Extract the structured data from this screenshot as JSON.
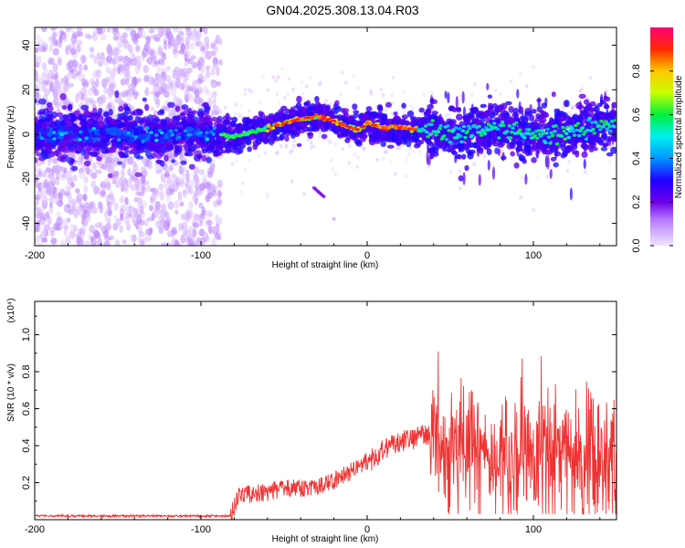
{
  "title": "GN04.2025.308.13.04.R03",
  "chart_data": [
    {
      "type": "heatmap",
      "name": "spectrogram",
      "xlabel": "Height of straight line (km)",
      "ylabel": "Frequency (Hz)",
      "xlim": [
        -200,
        150
      ],
      "ylim": [
        -50,
        48
      ],
      "xticks": [
        -200,
        -100,
        0,
        100
      ],
      "yticks": [
        -40,
        -20,
        0,
        20,
        40
      ],
      "colorbar": {
        "label": "Normalized spectral amplitude",
        "range": [
          0.0,
          1.0
        ],
        "ticks": [
          0.0,
          0.2,
          0.4,
          0.6,
          0.8
        ],
        "tick_labels": [
          "0.0",
          "0.2",
          "0.4",
          "0.6",
          "0.8"
        ],
        "colors": [
          "#f0e6ff",
          "#7a00ff",
          "#0000ff",
          "#00ffff",
          "#00ff00",
          "#ffff00",
          "#ff8000",
          "#ff0000",
          "#ff0080"
        ]
      },
      "ridge": [
        [
          -90,
          0
        ],
        [
          -80,
          -1
        ],
        [
          -70,
          1
        ],
        [
          -60,
          3
        ],
        [
          -50,
          5
        ],
        [
          -40,
          7
        ],
        [
          -30,
          8
        ],
        [
          -20,
          6
        ],
        [
          -10,
          3
        ],
        [
          -5,
          2
        ],
        [
          0,
          5
        ],
        [
          10,
          3
        ],
        [
          20,
          3
        ],
        [
          30,
          2
        ],
        [
          40,
          2
        ],
        [
          50,
          0
        ],
        [
          60,
          1
        ],
        [
          70,
          2
        ],
        [
          80,
          3
        ],
        [
          90,
          1
        ],
        [
          100,
          -1
        ],
        [
          110,
          0
        ],
        [
          120,
          1
        ],
        [
          130,
          3
        ],
        [
          140,
          4
        ],
        [
          150,
          4
        ]
      ],
      "features": [
        {
          "kind": "noise_region",
          "x_range": [
            -200,
            -90
          ],
          "y_range": [
            -50,
            48
          ]
        },
        {
          "kind": "faint_streak",
          "x": [
            -32,
            -26
          ],
          "y": [
            -24,
            -28
          ]
        },
        {
          "kind": "faint_point",
          "x": -20,
          "y": -38
        }
      ]
    },
    {
      "type": "line",
      "name": "snr",
      "xlabel": "Height of straight line (km)",
      "ylabel": "SNR (10 * v/v)",
      "scale_label": "(x10⁴)",
      "xlim": [
        -200,
        150
      ],
      "ylim": [
        0,
        1.18
      ],
      "xticks": [
        -200,
        -100,
        0,
        100
      ],
      "yticks": [
        0.2,
        0.4,
        0.6,
        0.8,
        1.0
      ],
      "ytick_labels": [
        "0.2",
        "0.4",
        "0.6",
        "0.8",
        "1.0"
      ],
      "color": "#ee3333",
      "envelope": [
        [
          -200,
          0.02
        ],
        [
          -100,
          0.02
        ],
        [
          -82,
          0.02
        ],
        [
          -78,
          0.12
        ],
        [
          -70,
          0.14
        ],
        [
          -60,
          0.15
        ],
        [
          -50,
          0.17
        ],
        [
          -40,
          0.17
        ],
        [
          -30,
          0.18
        ],
        [
          -20,
          0.21
        ],
        [
          -10,
          0.26
        ],
        [
          0,
          0.32
        ],
        [
          5,
          0.33
        ],
        [
          10,
          0.38
        ],
        [
          20,
          0.42
        ],
        [
          30,
          0.44
        ],
        [
          38,
          0.47
        ],
        [
          45,
          0.4
        ],
        [
          60,
          0.38
        ],
        [
          80,
          0.37
        ],
        [
          100,
          0.36
        ],
        [
          120,
          0.33
        ],
        [
          140,
          0.31
        ],
        [
          150,
          0.31
        ]
      ]
    }
  ]
}
